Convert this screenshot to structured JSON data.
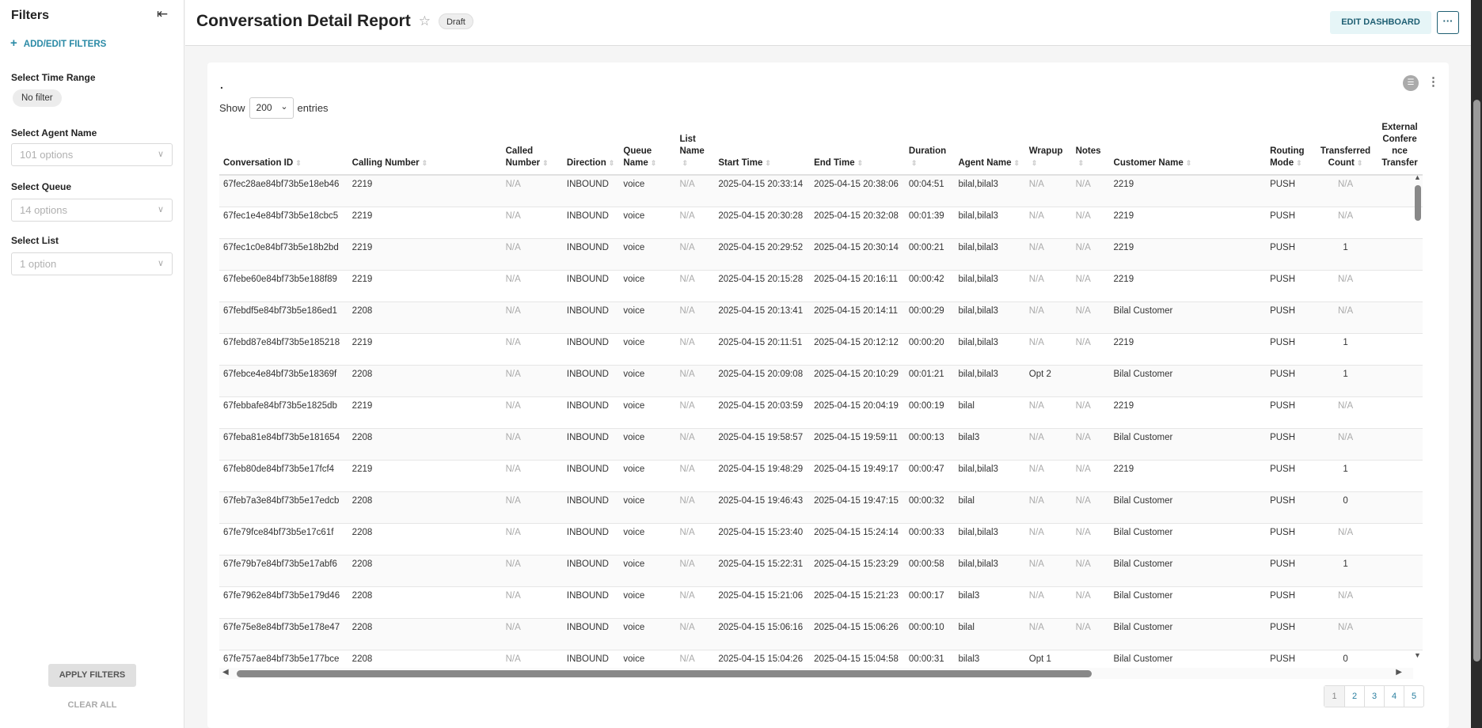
{
  "sidebar": {
    "title": "Filters",
    "add_filters": "ADD/EDIT FILTERS",
    "time_range": {
      "label": "Select Time Range",
      "value": "No filter"
    },
    "agent": {
      "label": "Select Agent Name",
      "placeholder": "101 options"
    },
    "queue": {
      "label": "Select Queue",
      "placeholder": "14 options"
    },
    "list": {
      "label": "Select List",
      "placeholder": "1 option"
    },
    "apply": "APPLY FILTERS",
    "clear": "CLEAR ALL"
  },
  "header": {
    "title": "Conversation Detail Report",
    "badge": "Draft",
    "edit": "EDIT DASHBOARD",
    "more": "···"
  },
  "card": {
    "dot": ".",
    "show": "Show",
    "entries_value": "200",
    "entries": "entries"
  },
  "table": {
    "columns": [
      "Conversation ID",
      "Calling Number",
      "Called Number",
      "Direction",
      "Queue Name",
      "List Name",
      "Start Time",
      "End Time",
      "Duration",
      "Agent Name",
      "Wrapup",
      "Notes",
      "Customer Name",
      "Routing Mode",
      "Transferred Count",
      "External Conference Transfer"
    ],
    "rows": [
      [
        "67fec28ae84bf73b5e18eb46",
        "2219",
        "N/A",
        "INBOUND",
        "voice",
        "N/A",
        "2025-04-15 20:33:14",
        "2025-04-15 20:38:06",
        "00:04:51",
        "bilal,bilal3",
        "N/A",
        "N/A",
        "2219",
        "PUSH",
        "N/A",
        ""
      ],
      [
        "67fec1e4e84bf73b5e18cbc5",
        "2219",
        "N/A",
        "INBOUND",
        "voice",
        "N/A",
        "2025-04-15 20:30:28",
        "2025-04-15 20:32:08",
        "00:01:39",
        "bilal,bilal3",
        "N/A",
        "N/A",
        "2219",
        "PUSH",
        "N/A",
        ""
      ],
      [
        "67fec1c0e84bf73b5e18b2bd",
        "2219",
        "N/A",
        "INBOUND",
        "voice",
        "N/A",
        "2025-04-15 20:29:52",
        "2025-04-15 20:30:14",
        "00:00:21",
        "bilal,bilal3",
        "N/A",
        "N/A",
        "2219",
        "PUSH",
        "1",
        ""
      ],
      [
        "67febe60e84bf73b5e188f89",
        "2219",
        "N/A",
        "INBOUND",
        "voice",
        "N/A",
        "2025-04-15 20:15:28",
        "2025-04-15 20:16:11",
        "00:00:42",
        "bilal,bilal3",
        "N/A",
        "N/A",
        "2219",
        "PUSH",
        "N/A",
        ""
      ],
      [
        "67febdf5e84bf73b5e186ed1",
        "2208",
        "N/A",
        "INBOUND",
        "voice",
        "N/A",
        "2025-04-15 20:13:41",
        "2025-04-15 20:14:11",
        "00:00:29",
        "bilal,bilal3",
        "N/A",
        "N/A",
        "Bilal Customer",
        "PUSH",
        "N/A",
        ""
      ],
      [
        "67febd87e84bf73b5e185218",
        "2219",
        "N/A",
        "INBOUND",
        "voice",
        "N/A",
        "2025-04-15 20:11:51",
        "2025-04-15 20:12:12",
        "00:00:20",
        "bilal,bilal3",
        "N/A",
        "N/A",
        "2219",
        "PUSH",
        "1",
        ""
      ],
      [
        "67febce4e84bf73b5e18369f",
        "2208",
        "N/A",
        "INBOUND",
        "voice",
        "N/A",
        "2025-04-15 20:09:08",
        "2025-04-15 20:10:29",
        "00:01:21",
        "bilal,bilal3",
        "Opt 2",
        "",
        "Bilal Customer",
        "PUSH",
        "1",
        ""
      ],
      [
        "67febbafe84bf73b5e1825db",
        "2219",
        "N/A",
        "INBOUND",
        "voice",
        "N/A",
        "2025-04-15 20:03:59",
        "2025-04-15 20:04:19",
        "00:00:19",
        "bilal",
        "N/A",
        "N/A",
        "2219",
        "PUSH",
        "N/A",
        ""
      ],
      [
        "67feba81e84bf73b5e181654",
        "2208",
        "N/A",
        "INBOUND",
        "voice",
        "N/A",
        "2025-04-15 19:58:57",
        "2025-04-15 19:59:11",
        "00:00:13",
        "bilal3",
        "N/A",
        "N/A",
        "Bilal Customer",
        "PUSH",
        "N/A",
        ""
      ],
      [
        "67feb80de84bf73b5e17fcf4",
        "2219",
        "N/A",
        "INBOUND",
        "voice",
        "N/A",
        "2025-04-15 19:48:29",
        "2025-04-15 19:49:17",
        "00:00:47",
        "bilal,bilal3",
        "N/A",
        "N/A",
        "2219",
        "PUSH",
        "1",
        ""
      ],
      [
        "67feb7a3e84bf73b5e17edcb",
        "2208",
        "N/A",
        "INBOUND",
        "voice",
        "N/A",
        "2025-04-15 19:46:43",
        "2025-04-15 19:47:15",
        "00:00:32",
        "bilal",
        "N/A",
        "N/A",
        "Bilal Customer",
        "PUSH",
        "0",
        ""
      ],
      [
        "67fe79fce84bf73b5e17c61f",
        "2208",
        "N/A",
        "INBOUND",
        "voice",
        "N/A",
        "2025-04-15 15:23:40",
        "2025-04-15 15:24:14",
        "00:00:33",
        "bilal,bilal3",
        "N/A",
        "N/A",
        "Bilal Customer",
        "PUSH",
        "N/A",
        ""
      ],
      [
        "67fe79b7e84bf73b5e17abf6",
        "2208",
        "N/A",
        "INBOUND",
        "voice",
        "N/A",
        "2025-04-15 15:22:31",
        "2025-04-15 15:23:29",
        "00:00:58",
        "bilal,bilal3",
        "N/A",
        "N/A",
        "Bilal Customer",
        "PUSH",
        "1",
        ""
      ],
      [
        "67fe7962e84bf73b5e179d46",
        "2208",
        "N/A",
        "INBOUND",
        "voice",
        "N/A",
        "2025-04-15 15:21:06",
        "2025-04-15 15:21:23",
        "00:00:17",
        "bilal3",
        "N/A",
        "N/A",
        "Bilal Customer",
        "PUSH",
        "N/A",
        ""
      ],
      [
        "67fe75e8e84bf73b5e178e47",
        "2208",
        "N/A",
        "INBOUND",
        "voice",
        "N/A",
        "2025-04-15 15:06:16",
        "2025-04-15 15:06:26",
        "00:00:10",
        "bilal",
        "N/A",
        "N/A",
        "Bilal Customer",
        "PUSH",
        "N/A",
        ""
      ],
      [
        "67fe757ae84bf73b5e177bce",
        "2208",
        "N/A",
        "INBOUND",
        "voice",
        "N/A",
        "2025-04-15 15:04:26",
        "2025-04-15 15:04:58",
        "00:00:31",
        "bilal3",
        "Opt 1",
        "",
        "Bilal Customer",
        "PUSH",
        "0",
        ""
      ]
    ]
  },
  "pagination": {
    "pages": [
      "1",
      "2",
      "3",
      "4",
      "5"
    ],
    "current": "1"
  }
}
